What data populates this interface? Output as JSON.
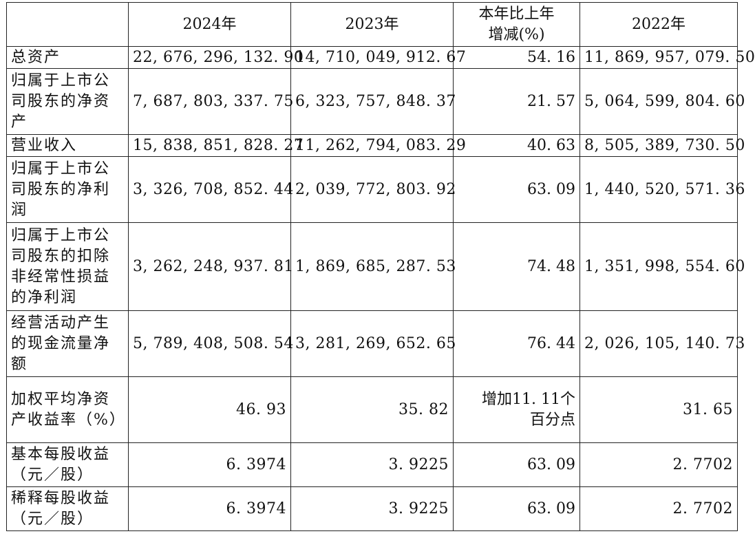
{
  "header": {
    "blank": "",
    "col_2024": "2024年",
    "col_2023": "2023年",
    "col_change_line1": "本年比上年",
    "col_change_line2": "增减(%)",
    "col_2022": "2022年"
  },
  "rows": [
    {
      "label": "总资产",
      "v2024": "22, 676, 296, 132. 90",
      "v2023": "14, 710, 049, 912. 67",
      "change": "54. 16",
      "v2022": "11, 869, 957, 079. 50"
    },
    {
      "label": "归属于上市公司股东的净资产",
      "v2024": "7, 687, 803, 337. 75",
      "v2023": "6, 323, 757, 848. 37",
      "change": "21. 57",
      "v2022": "5, 064, 599, 804. 60"
    },
    {
      "label": "营业收入",
      "v2024": "15, 838, 851, 828. 27",
      "v2023": "11, 262, 794, 083. 29",
      "change": "40. 63",
      "v2022": "8, 505, 389, 730. 50"
    },
    {
      "label": "归属于上市公司股东的净利润",
      "v2024": "3, 326, 708, 852. 44",
      "v2023": "2, 039, 772, 803. 92",
      "change": "63. 09",
      "v2022": "1, 440, 520, 571. 36"
    },
    {
      "label": "归属于上市公司股东的扣除非经常性损益的净利润",
      "v2024": "3, 262, 248, 937. 81",
      "v2023": "1, 869, 685, 287. 53",
      "change": "74. 48",
      "v2022": "1, 351, 998, 554. 60"
    },
    {
      "label": "经营活动产生的现金流量净额",
      "v2024": "5, 789, 408, 508. 54",
      "v2023": "3, 281, 269, 652. 65",
      "change": "76. 44",
      "v2022": "2, 026, 105, 140. 73"
    },
    {
      "label": "加权平均净资产收益率（%）",
      "v2024": "46. 93",
      "v2023": "35. 82",
      "change_line1": "增加11. 11个",
      "change_line2": "百分点",
      "v2022": "31. 65"
    },
    {
      "label": "基本每股收益（元／股）",
      "v2024": "6. 3974",
      "v2023": "3. 9225",
      "change": "63. 09",
      "v2022": "2. 7702"
    },
    {
      "label": "稀释每股收益（元／股）",
      "v2024": "6. 3974",
      "v2023": "3. 9225",
      "change": "63. 09",
      "v2022": "2. 7702"
    }
  ]
}
